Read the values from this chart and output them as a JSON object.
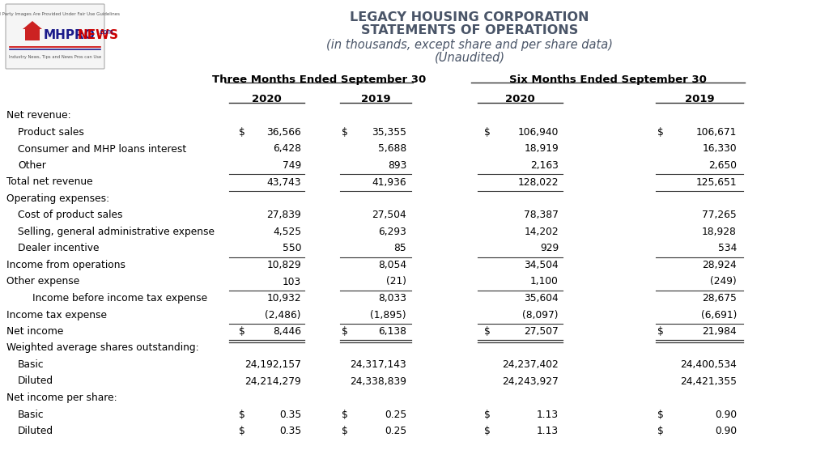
{
  "title1": "LEGACY HOUSING CORPORATION",
  "title2": "STATEMENTS OF OPERATIONS",
  "title3": "(in thousands, except share and per share data)",
  "title4": "(Unaudited)",
  "bg_color": "#ffffff",
  "text_color": "#000000",
  "title_color": "#4a5568",
  "rows": [
    {
      "label": "Net revenue:",
      "indent": 0,
      "values": [
        "",
        "",
        "",
        ""
      ],
      "dollar_signs": [
        false,
        false,
        false,
        false
      ],
      "underline": false,
      "double_underline": false
    },
    {
      "label": "Product sales",
      "indent": 1,
      "values": [
        "36,566",
        "35,355",
        "106,940",
        "106,671"
      ],
      "dollar_signs": [
        true,
        true,
        true,
        true
      ],
      "underline": false,
      "double_underline": false
    },
    {
      "label": "Consumer and MHP loans interest",
      "indent": 1,
      "values": [
        "6,428",
        "5,688",
        "18,919",
        "16,330"
      ],
      "dollar_signs": [
        false,
        false,
        false,
        false
      ],
      "underline": false,
      "double_underline": false
    },
    {
      "label": "Other",
      "indent": 1,
      "values": [
        "749",
        "893",
        "2,163",
        "2,650"
      ],
      "dollar_signs": [
        false,
        false,
        false,
        false
      ],
      "underline": true,
      "double_underline": false
    },
    {
      "label": "Total net revenue",
      "indent": 0,
      "values": [
        "43,743",
        "41,936",
        "128,022",
        "125,651"
      ],
      "dollar_signs": [
        false,
        false,
        false,
        false
      ],
      "underline": true,
      "double_underline": false
    },
    {
      "label": "Operating expenses:",
      "indent": 0,
      "values": [
        "",
        "",
        "",
        ""
      ],
      "dollar_signs": [
        false,
        false,
        false,
        false
      ],
      "underline": false,
      "double_underline": false
    },
    {
      "label": "Cost of product sales",
      "indent": 1,
      "values": [
        "27,839",
        "27,504",
        "78,387",
        "77,265"
      ],
      "dollar_signs": [
        false,
        false,
        false,
        false
      ],
      "underline": false,
      "double_underline": false
    },
    {
      "label": "Selling, general administrative expense",
      "indent": 1,
      "values": [
        "4,525",
        "6,293",
        "14,202",
        "18,928"
      ],
      "dollar_signs": [
        false,
        false,
        false,
        false
      ],
      "underline": false,
      "double_underline": false
    },
    {
      "label": "Dealer incentive",
      "indent": 1,
      "values": [
        "550",
        "85",
        "929",
        "534"
      ],
      "dollar_signs": [
        false,
        false,
        false,
        false
      ],
      "underline": true,
      "double_underline": false
    },
    {
      "label": "Income from operations",
      "indent": 0,
      "values": [
        "10,829",
        "8,054",
        "34,504",
        "28,924"
      ],
      "dollar_signs": [
        false,
        false,
        false,
        false
      ],
      "underline": false,
      "double_underline": false
    },
    {
      "label": "Other expense",
      "indent": 0,
      "values": [
        "103",
        "(21)",
        "1,100",
        "(249)"
      ],
      "dollar_signs": [
        false,
        false,
        false,
        false
      ],
      "underline": true,
      "double_underline": false
    },
    {
      "label": "Income before income tax expense",
      "indent": 2,
      "values": [
        "10,932",
        "8,033",
        "35,604",
        "28,675"
      ],
      "dollar_signs": [
        false,
        false,
        false,
        false
      ],
      "underline": false,
      "double_underline": false
    },
    {
      "label": "Income tax expense",
      "indent": 0,
      "values": [
        "(2,486)",
        "(1,895)",
        "(8,097)",
        "(6,691)"
      ],
      "dollar_signs": [
        false,
        false,
        false,
        false
      ],
      "underline": true,
      "double_underline": false
    },
    {
      "label": "Net income",
      "indent": 0,
      "values": [
        "8,446",
        "6,138",
        "27,507",
        "21,984"
      ],
      "dollar_signs": [
        true,
        true,
        true,
        true
      ],
      "underline": false,
      "double_underline": true
    },
    {
      "label": "Weighted average shares outstanding:",
      "indent": 0,
      "values": [
        "",
        "",
        "",
        ""
      ],
      "dollar_signs": [
        false,
        false,
        false,
        false
      ],
      "underline": false,
      "double_underline": false
    },
    {
      "label": "Basic",
      "indent": 1,
      "values": [
        "24,192,157",
        "24,317,143",
        "24,237,402",
        "24,400,534"
      ],
      "dollar_signs": [
        false,
        false,
        false,
        false
      ],
      "underline": false,
      "double_underline": false
    },
    {
      "label": "Diluted",
      "indent": 1,
      "values": [
        "24,214,279",
        "24,338,839",
        "24,243,927",
        "24,421,355"
      ],
      "dollar_signs": [
        false,
        false,
        false,
        false
      ],
      "underline": false,
      "double_underline": false
    },
    {
      "label": "Net income per share:",
      "indent": 0,
      "values": [
        "",
        "",
        "",
        ""
      ],
      "dollar_signs": [
        false,
        false,
        false,
        false
      ],
      "underline": false,
      "double_underline": false
    },
    {
      "label": "Basic",
      "indent": 1,
      "values": [
        "0.35",
        "0.25",
        "1.13",
        "0.90"
      ],
      "dollar_signs": [
        true,
        true,
        true,
        true
      ],
      "underline": false,
      "double_underline": false
    },
    {
      "label": "Diluted",
      "indent": 1,
      "values": [
        "0.35",
        "0.25",
        "1.13",
        "0.90"
      ],
      "dollar_signs": [
        true,
        true,
        true,
        true
      ],
      "underline": false,
      "double_underline": false
    }
  ]
}
